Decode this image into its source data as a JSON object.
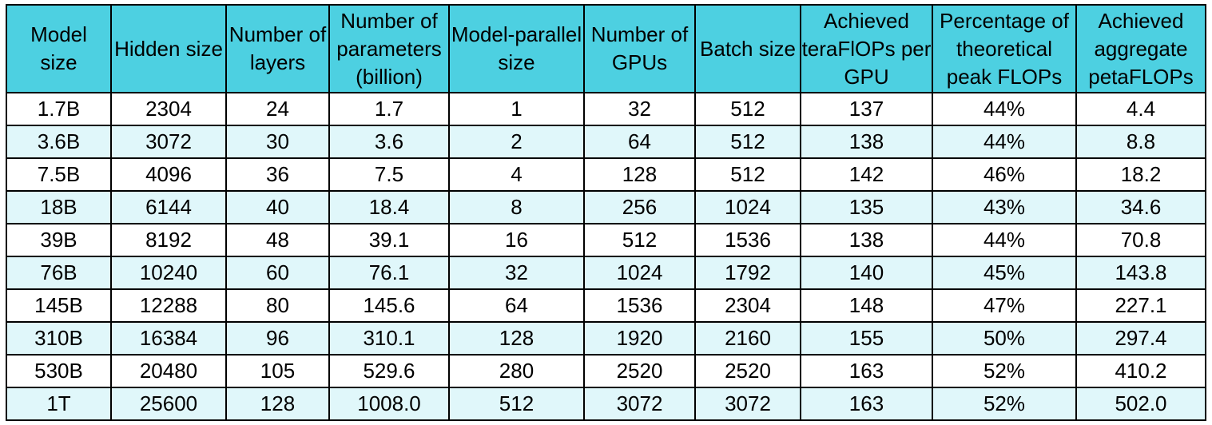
{
  "page": {
    "background": "#ffffff"
  },
  "chart_data": {
    "type": "table",
    "columns": [
      "Model\nsize",
      "Hidden size",
      "Number of\nlayers",
      "Number of\nparameters\n(billion)",
      "Model-parallel\nsize",
      "Number of\nGPUs",
      "Batch size",
      "Achieved\nteraFlOPs per\nGPU",
      "Percentage of\ntheoretical\npeak FLOPs",
      "Achieved\naggregate\npetaFLOPs"
    ],
    "rows": [
      [
        "1.7B",
        "2304",
        "24",
        "1.7",
        "1",
        "32",
        "512",
        "137",
        "44%",
        "4.4"
      ],
      [
        "3.6B",
        "3072",
        "30",
        "3.6",
        "2",
        "64",
        "512",
        "138",
        "44%",
        "8.8"
      ],
      [
        "7.5B",
        "4096",
        "36",
        "7.5",
        "4",
        "128",
        "512",
        "142",
        "46%",
        "18.2"
      ],
      [
        "18B",
        "6144",
        "40",
        "18.4",
        "8",
        "256",
        "1024",
        "135",
        "43%",
        "34.6"
      ],
      [
        "39B",
        "8192",
        "48",
        "39.1",
        "16",
        "512",
        "1536",
        "138",
        "44%",
        "70.8"
      ],
      [
        "76B",
        "10240",
        "60",
        "76.1",
        "32",
        "1024",
        "1792",
        "140",
        "45%",
        "143.8"
      ],
      [
        "145B",
        "12288",
        "80",
        "145.6",
        "64",
        "1536",
        "2304",
        "148",
        "47%",
        "227.1"
      ],
      [
        "310B",
        "16384",
        "96",
        "310.1",
        "128",
        "1920",
        "2160",
        "155",
        "50%",
        "297.4"
      ],
      [
        "530B",
        "20480",
        "105",
        "529.6",
        "280",
        "2520",
        "2520",
        "163",
        "52%",
        "410.2"
      ],
      [
        "1T",
        "25600",
        "128",
        "1008.0",
        "512",
        "3072",
        "3072",
        "163",
        "52%",
        "502.0"
      ]
    ],
    "colors": {
      "header_bg": "#4DD0E1",
      "row_alt_bg": "#E0F7FA",
      "row_bg": "#FFFFFF",
      "border": "#000000",
      "text": "#000000"
    }
  }
}
